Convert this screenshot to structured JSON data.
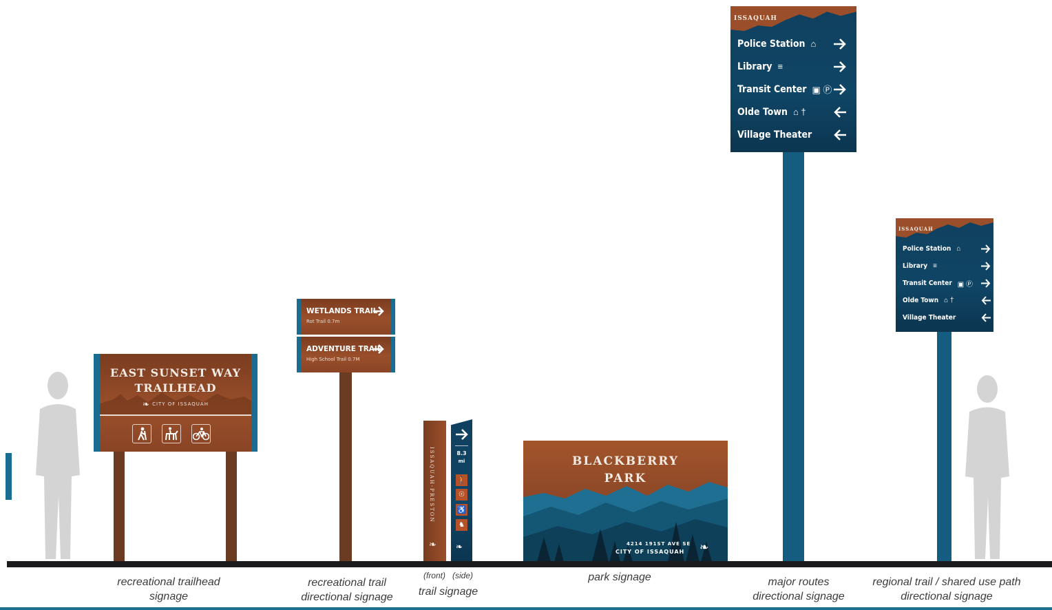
{
  "trailhead": {
    "title_line1": "EAST SUNSET WAY",
    "title_line2": "TRAILHEAD",
    "city": "CITY OF ISSAQUAH",
    "icons": [
      "hiker-icon",
      "horse-rider-icon",
      "bicycle-icon"
    ]
  },
  "rec_directional": {
    "panels": [
      {
        "name": "WETLANDS TRAIL",
        "sub": "Rot Trail  0.7m",
        "arrow": "right"
      },
      {
        "name": "ADVENTURE TRAIL",
        "sub": "High School Trail 0.7M",
        "arrow": "right"
      }
    ]
  },
  "trail_sign": {
    "front_text": "ISSAQUAH-PRESTON",
    "distance": "8.3",
    "unit": "mi",
    "icons": [
      "hiker-icon",
      "bicycle-icon",
      "wheelchair-icon",
      "horse-rider-icon"
    ],
    "label_front": "(front)",
    "label_side": "(side)"
  },
  "park": {
    "line1": "BLACKBERRY",
    "line2": "PARK",
    "address": "4214 191ST AVE SE",
    "city": "CITY OF ISSAQUAH"
  },
  "major_routes": {
    "header": "ISSAQUAH",
    "rows": [
      {
        "label": "Police Station",
        "symbol": "⌂",
        "arrow": "right"
      },
      {
        "label": "Library",
        "symbol": "≡",
        "arrow": "right"
      },
      {
        "label": "Transit Center",
        "symbol": "▣ Ⓟ",
        "arrow": "right"
      },
      {
        "label": "Olde Town",
        "symbol": "⌂ †",
        "arrow": "left"
      },
      {
        "label": "Village Theater",
        "symbol": "",
        "arrow": "left"
      }
    ]
  },
  "regional": {
    "header": "ISSAQUAH",
    "rows": [
      {
        "label": "Police Station",
        "symbol": "⌂",
        "arrow": "right"
      },
      {
        "label": "Library",
        "symbol": "≡",
        "arrow": "right"
      },
      {
        "label": "Transit Center",
        "symbol": "▣ Ⓟ",
        "arrow": "right"
      },
      {
        "label": "Olde Town",
        "symbol": "⌂ †",
        "arrow": "left"
      },
      {
        "label": "Village Theater",
        "symbol": "",
        "arrow": "left"
      }
    ]
  },
  "captions": {
    "trailhead": [
      "recreational trailhead",
      "signage"
    ],
    "rec_trail": [
      "recreational trail",
      "directional signage"
    ],
    "trail_sign": "trail signage",
    "park": "park signage",
    "major": [
      "major routes",
      "directional signage"
    ],
    "regional": [
      "regional trail / shared use path",
      "directional signage"
    ]
  }
}
